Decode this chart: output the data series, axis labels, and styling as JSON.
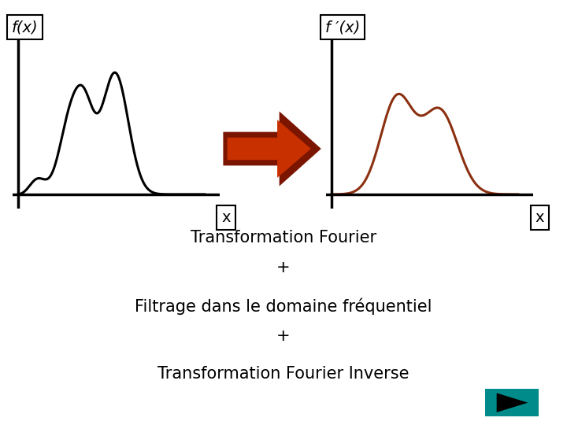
{
  "bg_color": "#ffffff",
  "left_plot": {
    "ylabel": "f(x)",
    "xlabel": "x",
    "curve_color": "#000000",
    "curve_lw": 2.2
  },
  "right_plot": {
    "ylabel": "f ′(x)",
    "xlabel": "x",
    "curve_color": "#8B3010",
    "curve_lw": 2.2
  },
  "arrow_color_outer": "#7B1500",
  "arrow_color_inner": "#C83000",
  "text_lines": [
    "Transformation Fourier",
    "+",
    "Filtrage dans le domaine fréquentiel",
    "+",
    "Transformation Fourier Inverse"
  ],
  "text_fontsize": 15,
  "label_fontsize": 14,
  "nav_color": "#008B8B"
}
